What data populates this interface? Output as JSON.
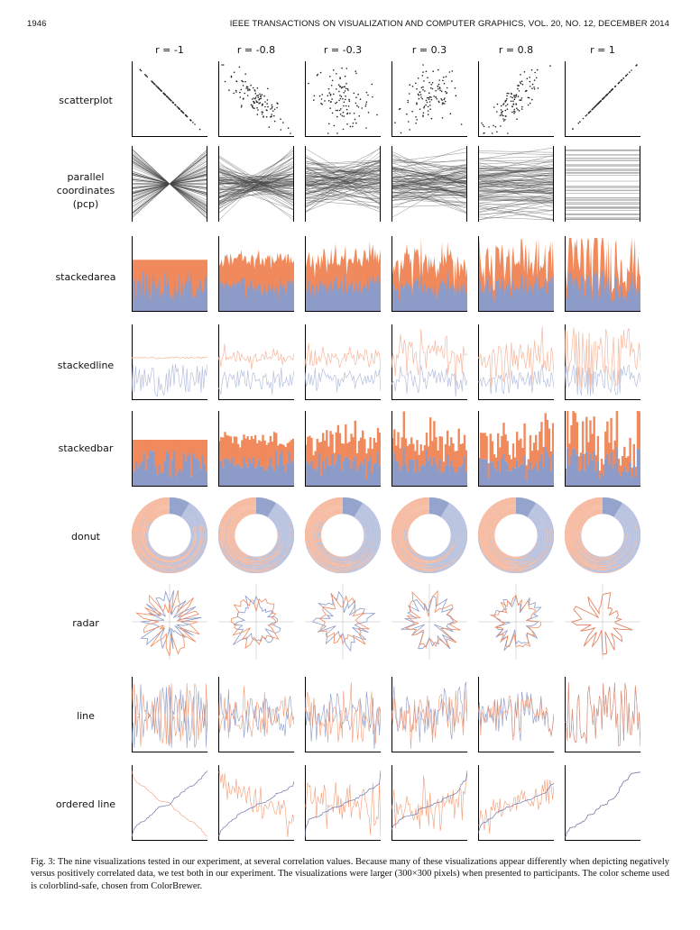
{
  "header": {
    "page_number": "1946",
    "journal": "IEEE TRANSACTIONS ON VISUALIZATION AND COMPUTER GRAPHICS,   VOL. 20,   NO. 12,   DECEMBER 2014"
  },
  "figure": {
    "columns": [
      "r = -1",
      "r = -0.8",
      "r = -0.3",
      "r = 0.3",
      "r = 0.8",
      "r = 1"
    ],
    "correlations": [
      -1,
      -0.8,
      -0.3,
      0.3,
      0.8,
      1
    ],
    "rows": [
      {
        "label": "scatterplot",
        "type": "scatterplot"
      },
      {
        "label": "parallel coordinates (pcp)",
        "type": "pcp"
      },
      {
        "label": "stackedarea",
        "type": "stackedarea"
      },
      {
        "label": "stackedline",
        "type": "stackedline"
      },
      {
        "label": "stackedbar",
        "type": "stackedbar"
      },
      {
        "label": "donut",
        "type": "donut"
      },
      {
        "label": "radar",
        "type": "radar"
      },
      {
        "label": "line",
        "type": "line"
      },
      {
        "label": "ordered line",
        "type": "orderedline"
      }
    ],
    "colors": {
      "orange": "#f08a5d",
      "blue": "#8c9bc8",
      "light_orange": "#f6b89e",
      "light_blue": "#b6c0de"
    }
  },
  "caption": "Fig. 3: The nine visualizations tested in our experiment, at several correlation values. Because many of these visualizations appear differently when depicting negatively versus positively correlated data, we test both in our experiment. The visualizations were larger (300×300 pixels) when presented to participants. The color scheme used is colorblind-safe, chosen from ColorBrewer."
}
